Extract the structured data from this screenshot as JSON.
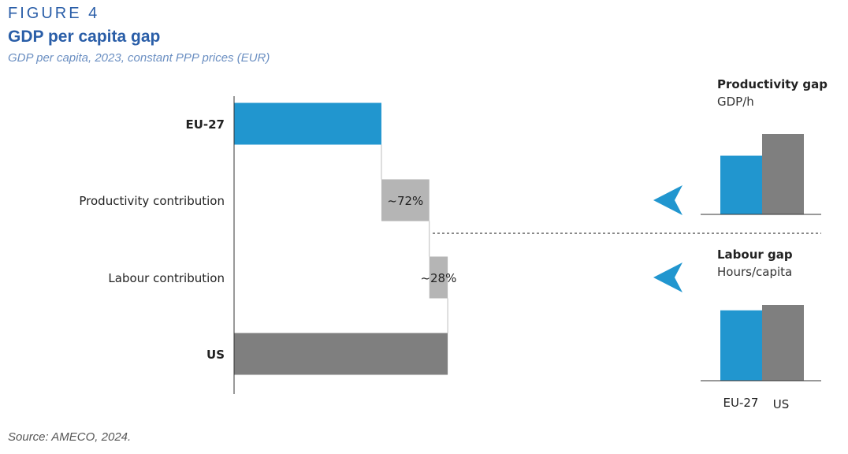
{
  "header": {
    "figure_label": "FIGURE 4",
    "title": "GDP per capita gap",
    "subtitle": "GDP per capita, 2023, constant PPP prices (EUR)"
  },
  "footer": {
    "source": "Source: AMECO, 2024."
  },
  "colors": {
    "eu": "#2196cf",
    "us": "#7f7f7f",
    "contribution": "#b5b5b5",
    "arrow": "#2196cf",
    "axis": "#333333"
  },
  "chart_data": [
    {
      "type": "bar",
      "subtype": "waterfall",
      "orientation": "horizontal",
      "categories": [
        "EU-27",
        "Productivity contribution",
        "Labour contribution",
        "US"
      ],
      "values": [
        100,
        32.5,
        12.5,
        145
      ],
      "bar_labels": [
        "",
        "~72%",
        "~28%",
        ""
      ],
      "bar_kinds": [
        "total",
        "delta",
        "delta",
        "total"
      ],
      "xlim": [
        0,
        230
      ],
      "title": "",
      "xlabel": "",
      "ylabel": ""
    },
    {
      "type": "bar",
      "title": "Productivity gap",
      "subtitle": "GDP/h",
      "categories": [
        "EU-27",
        "US"
      ],
      "values": [
        73,
        100
      ],
      "ylim": [
        0,
        100
      ]
    },
    {
      "type": "bar",
      "title": "Labour gap",
      "subtitle": "Hours/capita",
      "categories": [
        "EU-27",
        "US"
      ],
      "values": [
        93,
        100
      ],
      "ylim": [
        0,
        100
      ],
      "xtick_labels": [
        "EU-27",
        "US"
      ]
    }
  ]
}
